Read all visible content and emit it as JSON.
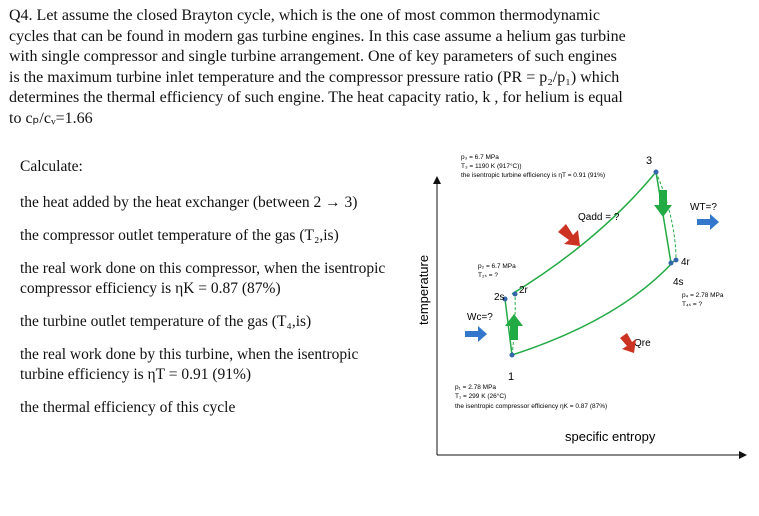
{
  "question": {
    "lines": [
      "Q4. Let assume the closed Brayton cycle, which is the one of most common thermodynamic",
      "cycles that can be found in modern gas turbine engines. In this case assume a helium gas turbine",
      "with single compressor and single turbine arrangement. One of key parameters of such engines",
      "is the maximum turbine inlet temperature and the compressor pressure ratio (PR = p₂/p₁) which",
      "determines the thermal efficiency of such engine. The heat capacity ratio, k , for helium is equal",
      "to cₚ/cᵥ=1.66"
    ]
  },
  "tasks": {
    "heading": "Calculate:",
    "items": [
      "the heat added by the heat exchanger (between 2 → 3)",
      "the compressor outlet temperature of the gas (T₂,is)",
      "the real work done on this compressor, when the isentropic compressor efficiency is ηK = 0.87 (87%)",
      "the turbine outlet temperature of the gas (T₄,is)",
      "the real work done by this turbine, when the isentropic turbine efficiency is ηT = 0.91 (91%)",
      "the thermal efficiency of this cycle"
    ]
  },
  "diagram": {
    "y_axis_label": "temperature",
    "x_axis_label": "specific entropy",
    "states": [
      "1",
      "2s",
      "2r",
      "3",
      "4s",
      "4r"
    ],
    "state3_note": [
      "p₃ = 6.7 MPa",
      "T₃ = 1190 K (917°C))",
      "the isentropic turbine efficiency is ηT = 0.91 (91%)"
    ],
    "state2_note": [
      "p₂ = 6.7 MPa",
      "T₂ₛ = ?"
    ],
    "state4_note": [
      "p₄ = 2.78 MPa",
      "T₄ₛ = ?"
    ],
    "state1_note": [
      "p₁ = 2.78 MPa",
      "T₁ = 299 K (26°C)",
      "the isentropic compressor efficiency ηK = 0.87 (87%)"
    ],
    "q_add": "Qadd = ?",
    "q_re": "Qre",
    "w_c": "Wc=?",
    "w_t": "WT=?"
  }
}
